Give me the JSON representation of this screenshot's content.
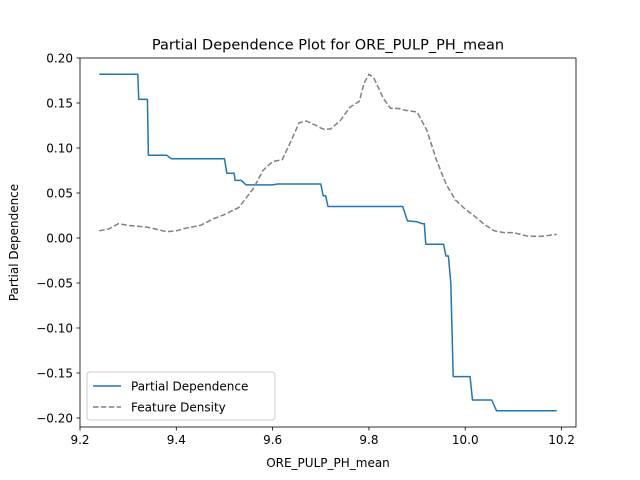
{
  "chart_data": {
    "type": "line",
    "title": "Partial Dependence Plot for ORE_PULP_PH_mean",
    "xlabel": "ORE_PULP_PH_mean",
    "ylabel": "Partial Dependence",
    "xlim": [
      9.2,
      10.23
    ],
    "ylim": [
      -0.21,
      0.2
    ],
    "x_ticks": [
      9.2,
      9.4,
      9.6,
      9.8,
      10.0,
      10.2
    ],
    "x_tick_labels": [
      "9.2",
      "9.4",
      "9.6",
      "9.8",
      "10.0",
      "10.2"
    ],
    "y_ticks": [
      0.2,
      0.15,
      0.1,
      0.05,
      0.0,
      -0.05,
      -0.1,
      -0.15,
      -0.2
    ],
    "y_tick_labels": [
      "0.20",
      "0.15",
      "0.10",
      "0.05",
      "0.00",
      "−0.05",
      "−0.10",
      "−0.15",
      "−0.20"
    ],
    "grid": false,
    "legend_position": "lower-left",
    "series": [
      {
        "name": "Partial Dependence",
        "color": "#1f77b4",
        "style": "solid",
        "points": [
          [
            9.24,
            0.182
          ],
          [
            9.32,
            0.182
          ],
          [
            9.322,
            0.154
          ],
          [
            9.34,
            0.154
          ],
          [
            9.342,
            0.092
          ],
          [
            9.38,
            0.092
          ],
          [
            9.39,
            0.088
          ],
          [
            9.5,
            0.088
          ],
          [
            9.505,
            0.072
          ],
          [
            9.52,
            0.072
          ],
          [
            9.522,
            0.064
          ],
          [
            9.535,
            0.064
          ],
          [
            9.545,
            0.059
          ],
          [
            9.6,
            0.059
          ],
          [
            9.61,
            0.06
          ],
          [
            9.7,
            0.06
          ],
          [
            9.705,
            0.047
          ],
          [
            9.71,
            0.047
          ],
          [
            9.715,
            0.035
          ],
          [
            9.87,
            0.035
          ],
          [
            9.88,
            0.019
          ],
          [
            9.9,
            0.018
          ],
          [
            9.91,
            0.016
          ],
          [
            9.915,
            0.016
          ],
          [
            9.918,
            -0.007
          ],
          [
            9.955,
            -0.007
          ],
          [
            9.96,
            -0.02
          ],
          [
            9.965,
            -0.02
          ],
          [
            9.97,
            -0.05
          ],
          [
            9.975,
            -0.154
          ],
          [
            10.01,
            -0.154
          ],
          [
            10.015,
            -0.18
          ],
          [
            10.055,
            -0.18
          ],
          [
            10.065,
            -0.192
          ],
          [
            10.19,
            -0.192
          ]
        ]
      },
      {
        "name": "Feature Density",
        "color": "#808080",
        "style": "dashed",
        "points": [
          [
            9.24,
            0.008
          ],
          [
            9.26,
            0.01
          ],
          [
            9.28,
            0.016
          ],
          [
            9.3,
            0.014
          ],
          [
            9.34,
            0.012
          ],
          [
            9.38,
            0.007
          ],
          [
            9.4,
            0.008
          ],
          [
            9.42,
            0.011
          ],
          [
            9.45,
            0.014
          ],
          [
            9.48,
            0.022
          ],
          [
            9.5,
            0.026
          ],
          [
            9.53,
            0.034
          ],
          [
            9.56,
            0.055
          ],
          [
            9.58,
            0.075
          ],
          [
            9.6,
            0.085
          ],
          [
            9.62,
            0.087
          ],
          [
            9.64,
            0.11
          ],
          [
            9.655,
            0.128
          ],
          [
            9.67,
            0.13
          ],
          [
            9.69,
            0.125
          ],
          [
            9.705,
            0.121
          ],
          [
            9.72,
            0.121
          ],
          [
            9.74,
            0.13
          ],
          [
            9.76,
            0.145
          ],
          [
            9.78,
            0.152
          ],
          [
            9.79,
            0.172
          ],
          [
            9.8,
            0.182
          ],
          [
            9.81,
            0.178
          ],
          [
            9.83,
            0.155
          ],
          [
            9.845,
            0.144
          ],
          [
            9.86,
            0.144
          ],
          [
            9.875,
            0.142
          ],
          [
            9.9,
            0.14
          ],
          [
            9.92,
            0.12
          ],
          [
            9.94,
            0.087
          ],
          [
            9.96,
            0.06
          ],
          [
            9.98,
            0.042
          ],
          [
            10.0,
            0.032
          ],
          [
            10.02,
            0.024
          ],
          [
            10.04,
            0.015
          ],
          [
            10.06,
            0.008
          ],
          [
            10.08,
            0.006
          ],
          [
            10.1,
            0.006
          ],
          [
            10.13,
            0.002
          ],
          [
            10.16,
            0.002
          ],
          [
            10.19,
            0.004
          ]
        ]
      }
    ]
  }
}
